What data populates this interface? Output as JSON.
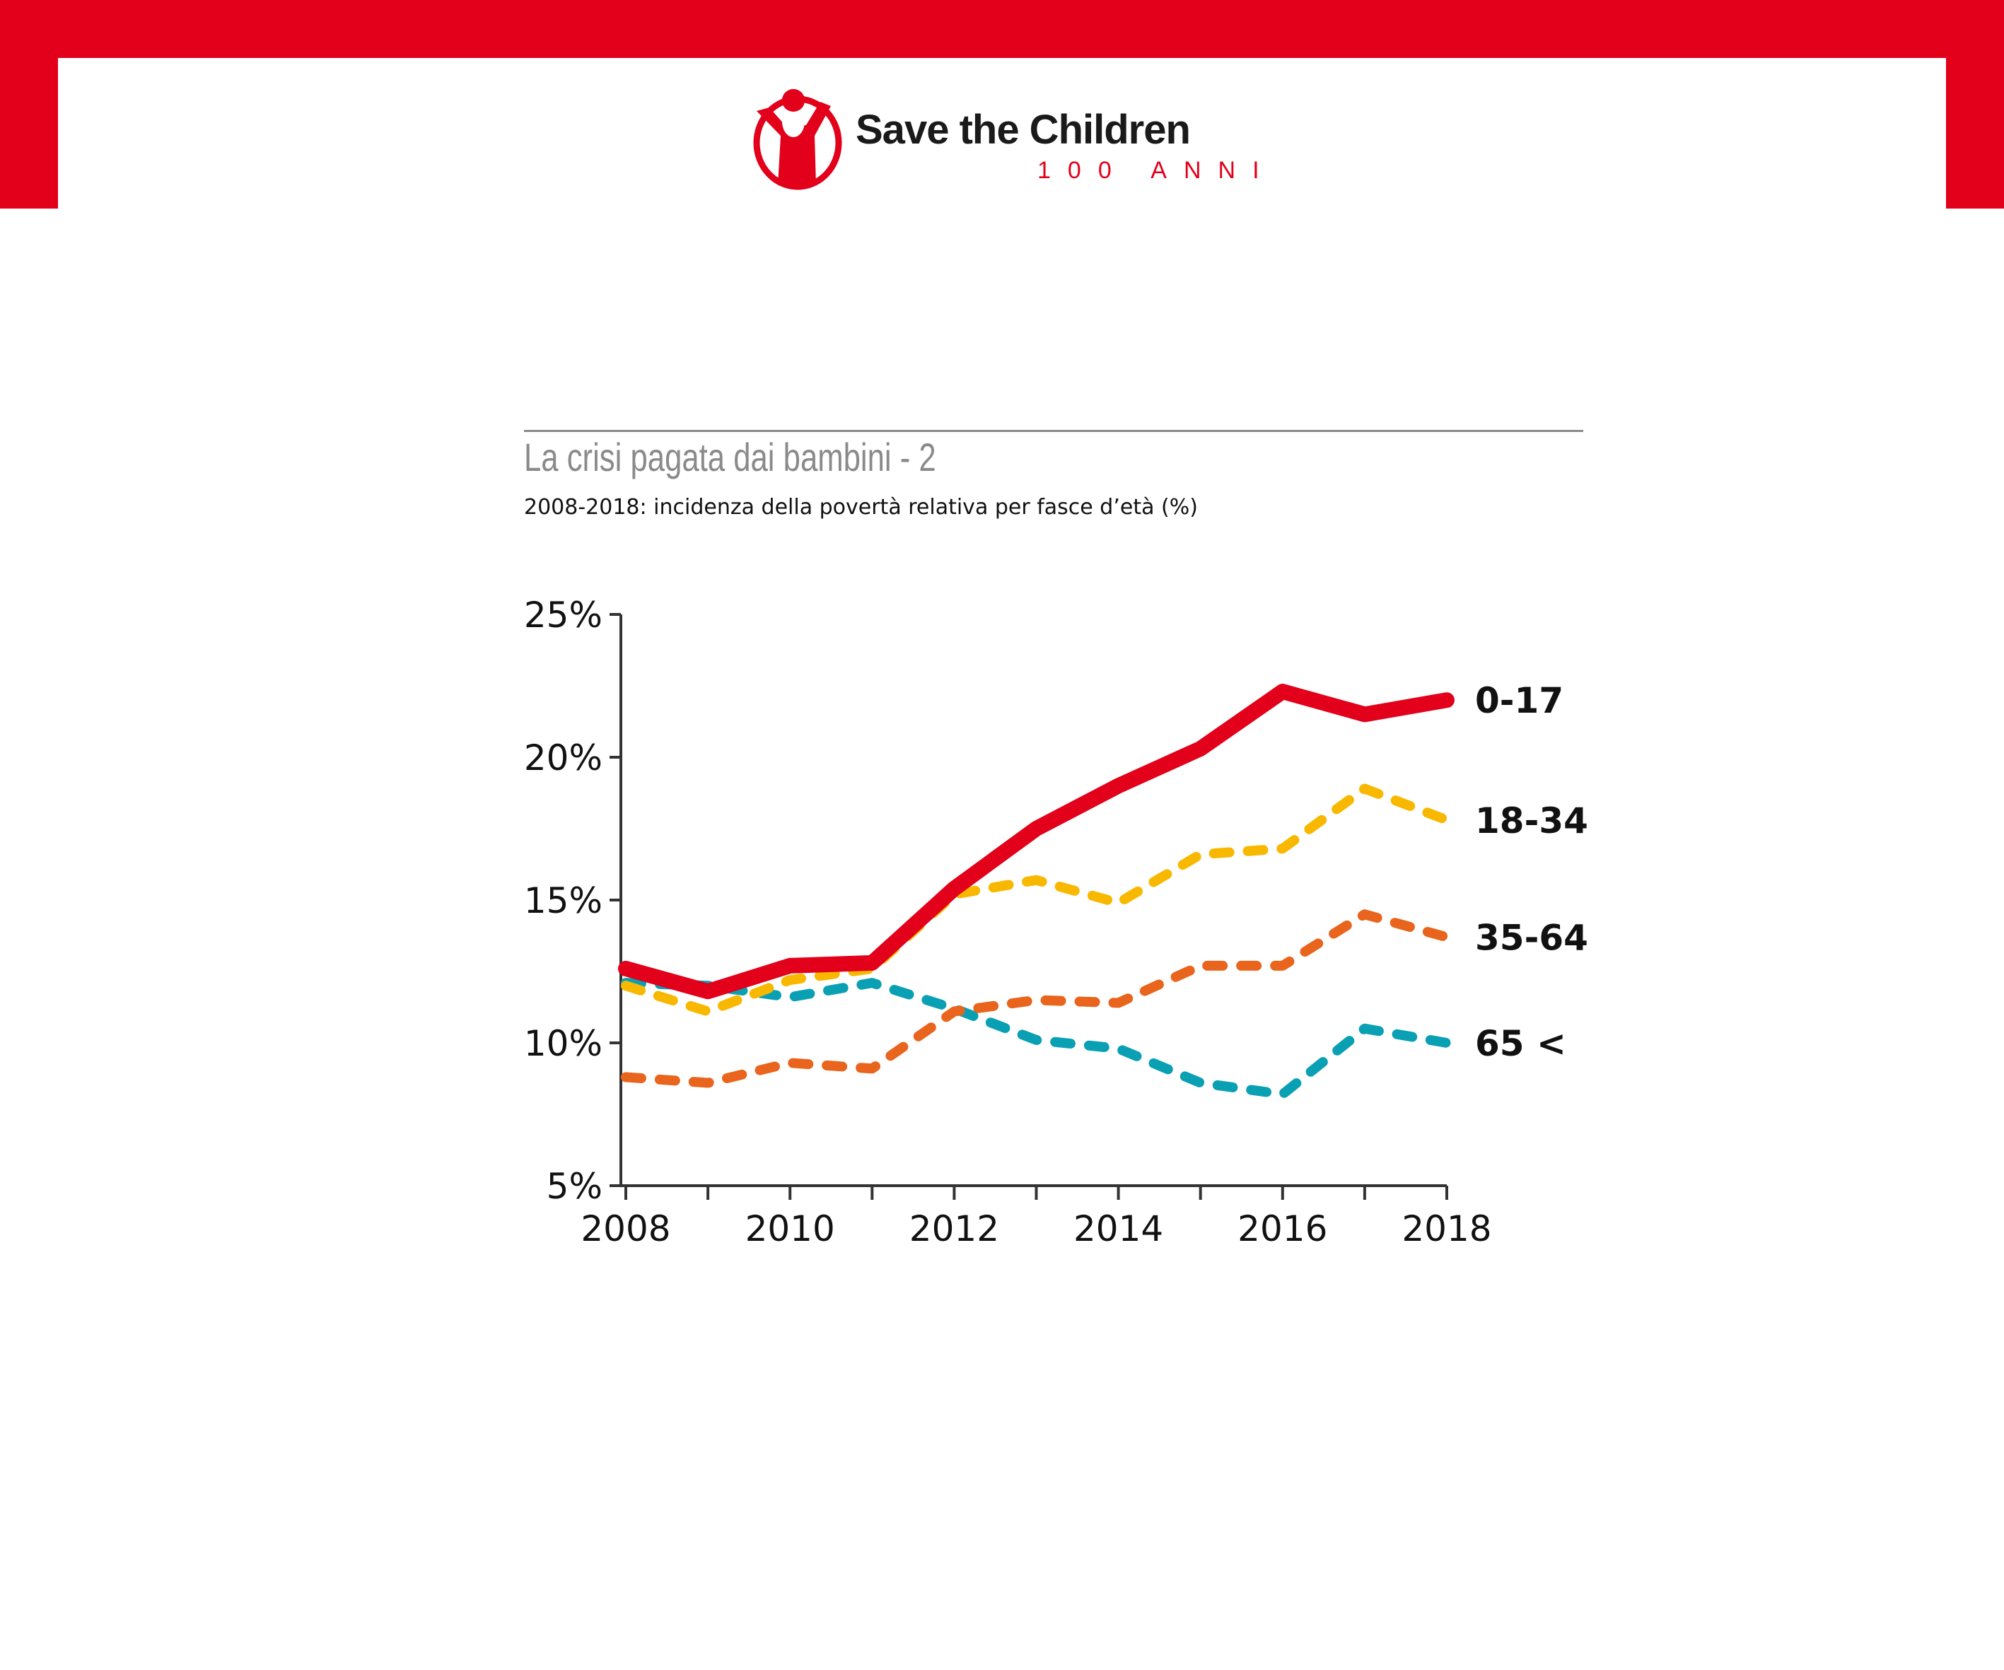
{
  "brand": {
    "name": "Save the Children",
    "tagline": "100 ANNI",
    "color": "#e2001a"
  },
  "chart_data": {
    "type": "line",
    "title": "La crisi pagata dai bambini - 2",
    "subtitle": "2008-2018: incidenza della povertà relativa per fasce d’età (%)",
    "xlabel": "",
    "ylabel": "",
    "x": [
      2008,
      2009,
      2010,
      2011,
      2012,
      2013,
      2014,
      2015,
      2016,
      2017,
      2018
    ],
    "x_tick_labels": [
      "2008",
      "2010",
      "2012",
      "2014",
      "2016",
      "2018"
    ],
    "y_tick_labels": [
      "25%",
      "20%",
      "15%",
      "10%",
      "5%"
    ],
    "y_ticks": [
      25,
      20,
      15,
      10,
      5
    ],
    "ylim": [
      5,
      25
    ],
    "grid": false,
    "legend": "direct labels at right end of lines",
    "series": [
      {
        "name": "0-17",
        "color": "#e2001a",
        "style": "solid",
        "values": [
          12.6,
          11.8,
          12.7,
          12.8,
          15.4,
          17.5,
          19.0,
          20.3,
          22.3,
          21.5,
          22.0
        ]
      },
      {
        "name": "18-34",
        "color": "#f9b800",
        "style": "dashed",
        "values": [
          12.0,
          11.1,
          12.2,
          12.6,
          15.2,
          15.7,
          14.9,
          16.6,
          16.8,
          18.9,
          17.8
        ]
      },
      {
        "name": "35-64",
        "color": "#e9641c",
        "style": "dashed",
        "values": [
          8.8,
          8.6,
          9.3,
          9.1,
          11.1,
          11.5,
          11.4,
          12.7,
          12.7,
          14.5,
          13.7
        ]
      },
      {
        "name": "65 <",
        "color": "#0aa0b4",
        "style": "dashed",
        "values": [
          12.1,
          12.0,
          11.6,
          12.1,
          11.2,
          10.1,
          9.8,
          8.6,
          8.2,
          10.5,
          10.0
        ]
      }
    ]
  }
}
